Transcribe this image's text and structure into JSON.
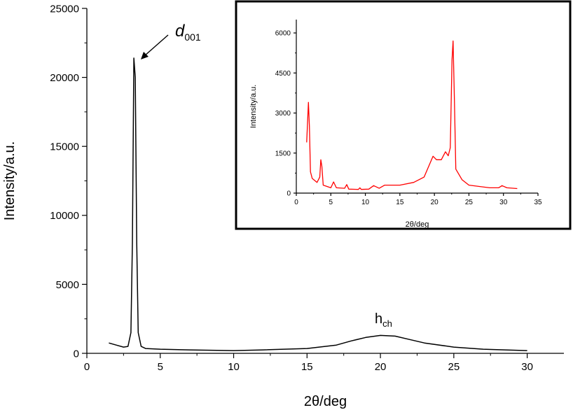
{
  "chart_data": [
    {
      "type": "line",
      "title": "",
      "xlabel": "2θ/deg",
      "ylabel": "Intensity/a.u.",
      "xlim": [
        0,
        32.5
      ],
      "ylim": [
        0,
        25000
      ],
      "xticks": [
        0,
        5,
        10,
        15,
        20,
        25,
        30
      ],
      "yticks": [
        0,
        5000,
        10000,
        15000,
        20000,
        25000
      ],
      "grid": false,
      "color": "#000000",
      "annotations": [
        {
          "base": "d",
          "sub": "001",
          "x": 3.2,
          "y": 21400,
          "arrow": true
        },
        {
          "base": "h",
          "sub": "ch",
          "x": 20.2,
          "y": 1300,
          "arrow": false
        }
      ],
      "x": [
        1.5,
        2.0,
        2.5,
        2.8,
        3.0,
        3.1,
        3.2,
        3.3,
        3.4,
        3.5,
        3.7,
        4,
        5,
        7,
        10,
        12,
        15,
        17,
        18,
        19,
        20,
        21,
        22,
        23,
        25,
        27,
        30
      ],
      "y": [
        750,
        600,
        450,
        500,
        1500,
        8000,
        21400,
        20000,
        8000,
        1500,
        500,
        350,
        300,
        250,
        200,
        250,
        350,
        600,
        900,
        1150,
        1300,
        1250,
        1000,
        750,
        450,
        300,
        200
      ]
    },
    {
      "type": "line",
      "title": "",
      "xlabel": "2θ/deg",
      "ylabel": "Intensity/a.u.",
      "xlim": [
        0,
        35
      ],
      "ylim": [
        0,
        6500
      ],
      "xticks": [
        0,
        5,
        10,
        15,
        20,
        25,
        30,
        35
      ],
      "yticks": [
        0,
        1500,
        3000,
        4500,
        6000
      ],
      "grid": false,
      "color": "#ff0000",
      "placement": "inset top-right",
      "x": [
        1.5,
        1.75,
        1.9,
        2.05,
        2.3,
        3,
        3.4,
        3.55,
        3.7,
        3.9,
        5,
        5.4,
        5.8,
        7,
        7.3,
        7.6,
        9,
        9.2,
        9.4,
        10.5,
        11.2,
        12,
        12.8,
        15,
        17,
        18.5,
        19.5,
        19.8,
        20.3,
        21,
        21.6,
        22,
        22.3,
        22.55,
        22.7,
        22.9,
        23.1,
        24,
        25,
        28,
        29.3,
        29.8,
        30.5,
        32
      ],
      "y": [
        1900,
        3400,
        2500,
        800,
        550,
        400,
        600,
        1250,
        1000,
        300,
        200,
        420,
        200,
        180,
        320,
        150,
        140,
        200,
        140,
        150,
        280,
        180,
        300,
        300,
        400,
        600,
        1200,
        1380,
        1250,
        1250,
        1550,
        1400,
        1700,
        5000,
        5700,
        3500,
        900,
        500,
        300,
        200,
        200,
        280,
        200,
        170
      ]
    }
  ]
}
